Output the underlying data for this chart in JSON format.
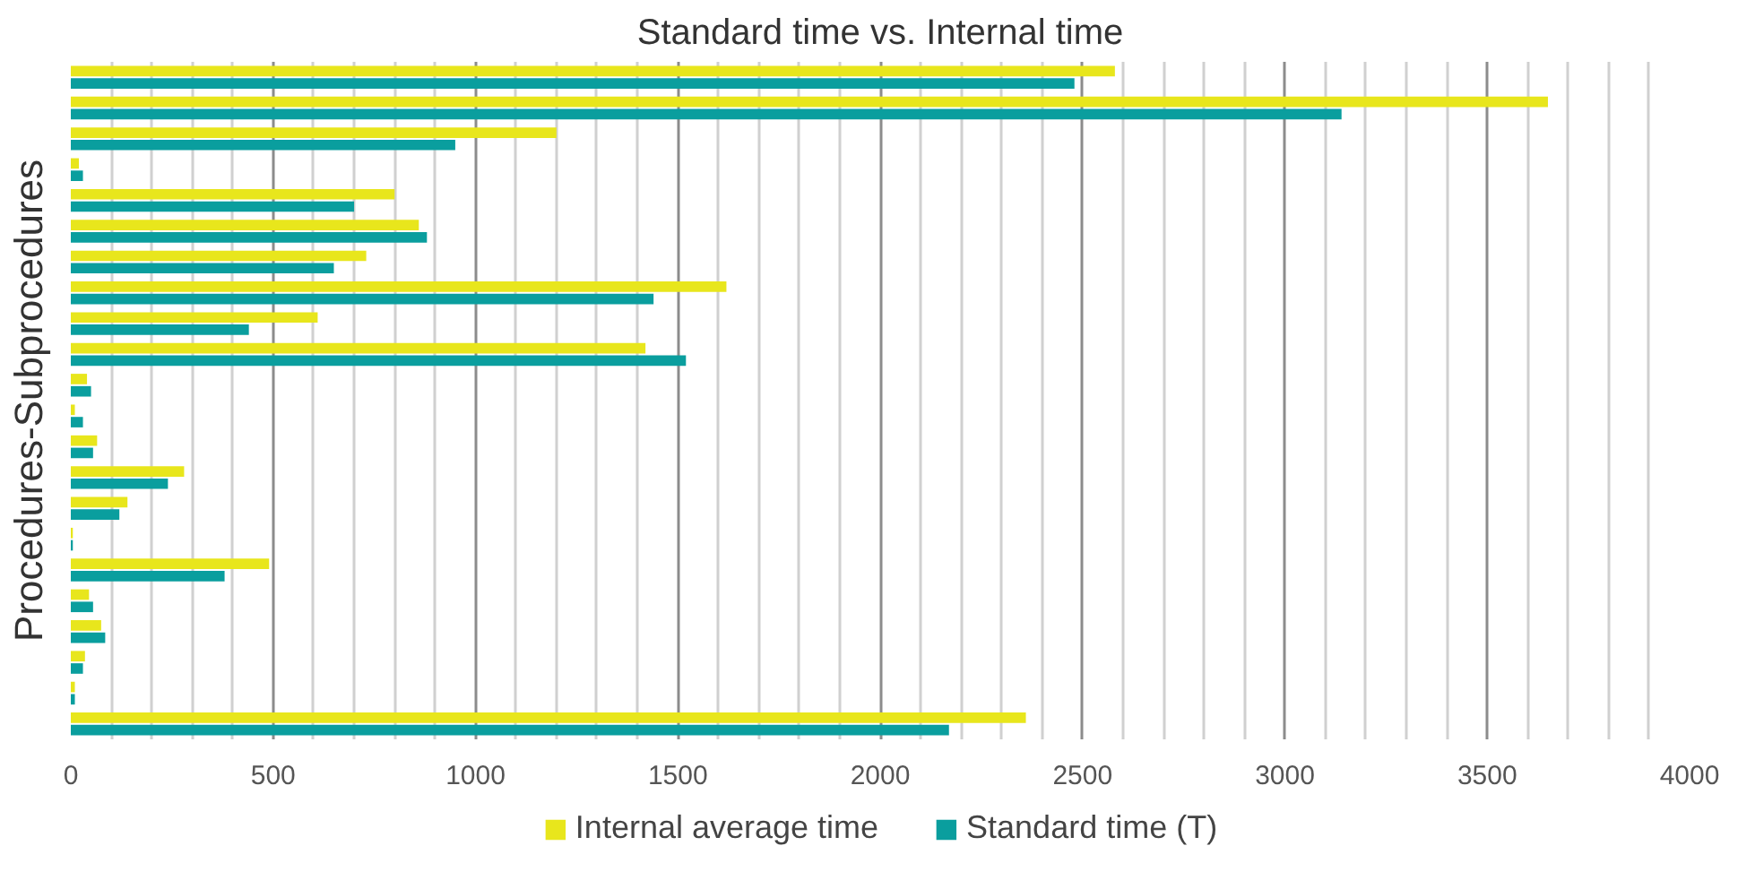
{
  "chart_data": {
    "type": "bar",
    "orientation": "horizontal",
    "title": "Standard time vs. Internal time",
    "ylabel": "Procedures-Subprocedures",
    "categories": [
      null,
      null,
      null,
      null,
      null,
      null,
      null,
      null,
      null,
      null,
      null,
      null,
      null,
      null,
      null,
      null,
      null,
      null,
      null,
      null,
      null,
      null
    ],
    "series": [
      {
        "name": "Internal average time",
        "color": "#e8e61c",
        "values": [
          2580,
          3650,
          1200,
          20,
          800,
          860,
          730,
          1620,
          610,
          1420,
          40,
          10,
          65,
          280,
          140,
          5,
          490,
          45,
          75,
          35,
          10,
          2360
        ]
      },
      {
        "name": "Standard time (T)",
        "color": "#0a9e9e",
        "values": [
          2480,
          3140,
          950,
          30,
          700,
          880,
          650,
          1440,
          440,
          1520,
          50,
          30,
          55,
          240,
          120,
          5,
          380,
          55,
          85,
          30,
          10,
          2170
        ]
      }
    ],
    "xlim": [
      0,
      4000
    ],
    "xticks": [
      0,
      {
        "value": 100,
        "label": null
      },
      {
        "value": 200,
        "label": null
      },
      {
        "value": 300,
        "label": null
      },
      {
        "value": 400,
        "label": null
      },
      500,
      {
        "value": 600,
        "label": null
      },
      {
        "value": 700,
        "label": null
      },
      {
        "value": 800,
        "label": null
      },
      {
        "value": 900,
        "label": null
      },
      1000,
      {
        "value": 1100,
        "label": null
      },
      {
        "value": 1200,
        "label": null
      },
      {
        "value": 1300,
        "label": null
      },
      {
        "value": 1400,
        "label": null
      },
      1500,
      {
        "value": 1600,
        "label": null
      },
      {
        "value": 1700,
        "label": null
      },
      {
        "value": 1800,
        "label": null
      },
      {
        "value": 1900,
        "label": null
      },
      2000,
      {
        "value": 2100,
        "label": null
      },
      {
        "value": 2200,
        "label": null
      },
      {
        "value": 2300,
        "label": null
      },
      {
        "value": 2400,
        "label": null
      },
      2500,
      {
        "value": 2600,
        "label": null
      },
      {
        "value": 2700,
        "label": null
      },
      {
        "value": 2800,
        "label": null
      },
      {
        "value": 2900,
        "label": null
      },
      3000,
      {
        "value": 3100,
        "label": null
      },
      {
        "value": 3200,
        "label": null
      },
      {
        "value": 3300,
        "label": null
      },
      {
        "value": 3400,
        "label": null
      },
      3500,
      {
        "value": 3600,
        "label": null
      },
      {
        "value": 3700,
        "label": null
      },
      {
        "value": 3800,
        "label": null
      },
      {
        "value": 3900,
        "label": null
      },
      4000
    ],
    "grid": "x",
    "legend": "bottom",
    "tick_labels": "x"
  }
}
